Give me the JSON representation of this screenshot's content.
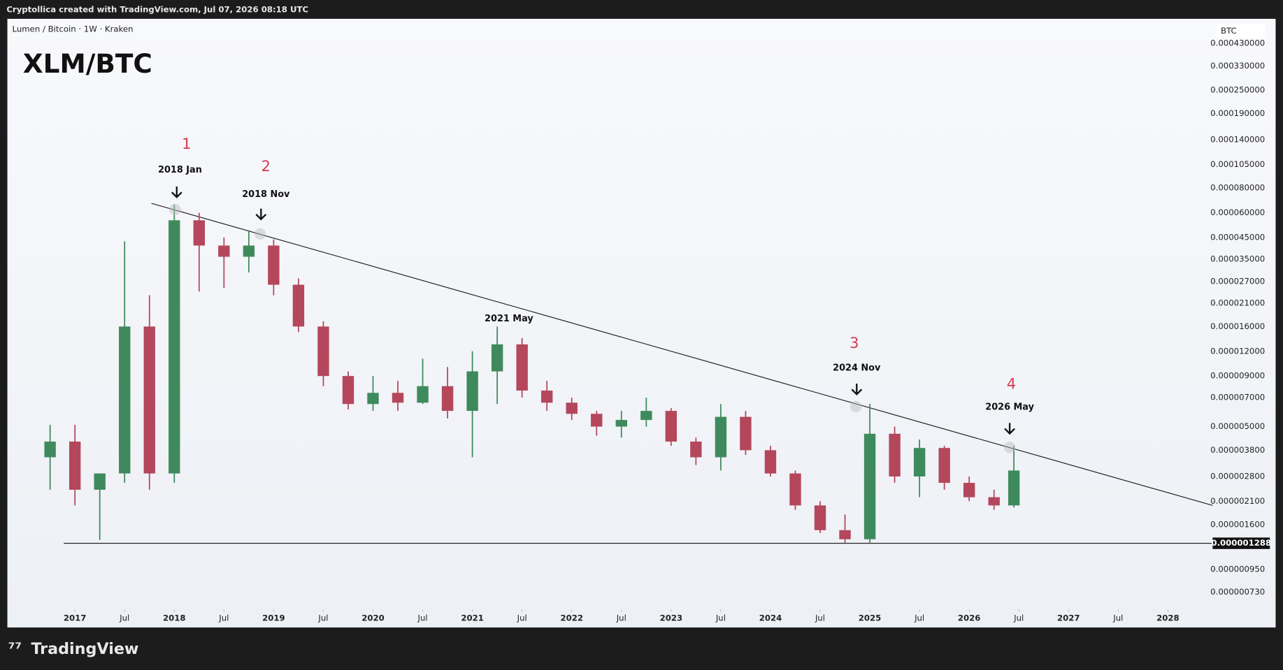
{
  "header": "Cryptollica created with TradingView.com, Jul 07, 2026 08:18 UTC",
  "brand": "TradingView",
  "chart_data": {
    "type": "candlestick",
    "title": "XLM/BTC",
    "subtitle": "Lumen / Bitcoin · 1W · Kraken",
    "y_unit": "BTC",
    "log_scale": true,
    "grid": false,
    "up_color": "#3f8a5c",
    "down_color": "#b4475c",
    "x": [
      2016.75,
      2017.0,
      2017.25,
      2017.5,
      2017.75,
      2018.0,
      2018.25,
      2018.5,
      2018.75,
      2019.0,
      2019.25,
      2019.5,
      2019.75,
      2020.0,
      2020.25,
      2020.5,
      2020.75,
      2021.0,
      2021.25,
      2021.5,
      2021.75,
      2022.0,
      2022.25,
      2022.5,
      2022.75,
      2023.0,
      2023.25,
      2023.5,
      2023.75,
      2024.0,
      2024.25,
      2024.5,
      2024.75,
      2025.0,
      2025.25,
      2025.5,
      2025.75,
      2026.0,
      2026.25,
      2026.45
    ],
    "open": [
      3.5e-06,
      4.2e-06,
      2.4e-06,
      2.9e-06,
      1.6e-05,
      2.9e-06,
      5.5e-05,
      4.1e-05,
      3.6e-05,
      4.1e-05,
      2.6e-05,
      1.6e-05,
      9e-06,
      6.5e-06,
      7.4e-06,
      6.6e-06,
      8e-06,
      6e-06,
      9.5e-06,
      1.3e-05,
      7.6e-06,
      6.6e-06,
      5.8e-06,
      5e-06,
      5.4e-06,
      6e-06,
      4.2e-06,
      3.5e-06,
      5.6e-06,
      3.8e-06,
      2.9e-06,
      2e-06,
      1.5e-06,
      1.35e-06,
      4.6e-06,
      2.8e-06,
      3.9e-06,
      2.6e-06,
      2.2e-06,
      2e-06
    ],
    "high": [
      5.1e-06,
      5.1e-06,
      2.9e-06,
      4.3e-05,
      2.3e-05,
      6.6e-05,
      6e-05,
      4.5e-05,
      4.9e-05,
      4.4e-05,
      2.8e-05,
      1.7e-05,
      9.5e-06,
      9e-06,
      8.5e-06,
      1.1e-05,
      1e-05,
      1.2e-05,
      1.6e-05,
      1.4e-05,
      8.5e-06,
      7e-06,
      6e-06,
      6e-06,
      7e-06,
      6.2e-06,
      4.4e-06,
      6.5e-06,
      6e-06,
      4e-06,
      3e-06,
      2.1e-06,
      1.8e-06,
      6.5e-06,
      5e-06,
      4.3e-06,
      4e-06,
      2.8e-06,
      2.4e-06,
      4e-06
    ],
    "low": [
      2.4e-06,
      2e-06,
      1.34e-06,
      2.6e-06,
      2.4e-06,
      2.6e-06,
      2.4e-05,
      2.5e-05,
      3e-05,
      2.3e-05,
      1.5e-05,
      8e-06,
      6.1e-06,
      6e-06,
      6e-06,
      6.5e-06,
      5.5e-06,
      3.5e-06,
      6.5e-06,
      7e-06,
      6e-06,
      5.4e-06,
      4.5e-06,
      4.4e-06,
      5e-06,
      4e-06,
      3.2e-06,
      3e-06,
      3.6e-06,
      2.8e-06,
      1.9e-06,
      1.45e-06,
      1.29e-06,
      1.29e-06,
      2.6e-06,
      2.2e-06,
      2.4e-06,
      2.1e-06,
      1.9e-06,
      1.95e-06
    ],
    "close": [
      4.2e-06,
      2.4e-06,
      2.9e-06,
      1.6e-05,
      2.9e-06,
      5.5e-05,
      4.1e-05,
      3.6e-05,
      4.1e-05,
      2.6e-05,
      1.6e-05,
      9e-06,
      6.5e-06,
      7.4e-06,
      6.6e-06,
      8e-06,
      6e-06,
      9.5e-06,
      1.3e-05,
      7.6e-06,
      6.6e-06,
      5.8e-06,
      5e-06,
      5.4e-06,
      6e-06,
      4.2e-06,
      3.5e-06,
      5.6e-06,
      3.8e-06,
      2.9e-06,
      2e-06,
      1.5e-06,
      1.35e-06,
      4.6e-06,
      2.8e-06,
      3.9e-06,
      2.6e-06,
      2.2e-06,
      2e-06,
      3e-06
    ],
    "xlim": [
      2016.32,
      2028.45
    ],
    "xticks": [
      2017,
      {
        "value": 2017.5,
        "label": "Jul"
      },
      2018,
      {
        "value": 2018.5,
        "label": "Jul"
      },
      2019,
      {
        "value": 2019.5,
        "label": "Jul"
      },
      2020,
      {
        "value": 2020.5,
        "label": "Jul"
      },
      2021,
      {
        "value": 2021.5,
        "label": "Jul"
      },
      2022,
      {
        "value": 2022.5,
        "label": "Jul"
      },
      2023,
      {
        "value": 2023.5,
        "label": "Jul"
      },
      2024,
      {
        "value": 2024.5,
        "label": "Jul"
      },
      2025,
      {
        "value": 2025.5,
        "label": "Jul"
      },
      2026,
      {
        "value": 2026.5,
        "label": "Jul"
      },
      2027,
      {
        "value": 2027.5,
        "label": "Jul"
      },
      2028
    ],
    "ylim": [
      6.14e-07,
      0.000572
    ],
    "yticks": [
      {
        "value": 0.00043,
        "label": "0.000430000"
      },
      {
        "value": 0.00033,
        "label": "0.000330000"
      },
      {
        "value": 0.00025,
        "label": "0.000250000"
      },
      {
        "value": 0.00019,
        "label": "0.000190000"
      },
      {
        "value": 0.00014,
        "label": "0.000140000"
      },
      {
        "value": 0.000105,
        "label": "0.000105000"
      },
      {
        "value": 8e-05,
        "label": "0.000080000"
      },
      {
        "value": 6e-05,
        "label": "0.000060000"
      },
      {
        "value": 4.5e-05,
        "label": "0.000045000"
      },
      {
        "value": 3.5e-05,
        "label": "0.000035000"
      },
      {
        "value": 2.7e-05,
        "label": "0.000027000"
      },
      {
        "value": 2.1e-05,
        "label": "0.000021000"
      },
      {
        "value": 1.6e-05,
        "label": "0.000016000"
      },
      {
        "value": 1.2e-05,
        "label": "0.000012000"
      },
      {
        "value": 9e-06,
        "label": "0.000009000"
      },
      {
        "value": 7e-06,
        "label": "0.000007000"
      },
      {
        "value": 5e-06,
        "label": "0.000005000"
      },
      {
        "value": 3.8e-06,
        "label": "0.000003800"
      },
      {
        "value": 2.8e-06,
        "label": "0.000002800"
      },
      {
        "value": 2.1e-06,
        "label": "0.000002100"
      },
      {
        "value": 1.6e-06,
        "label": "0.000001600"
      },
      {
        "value": 9.5e-07,
        "label": "0.000000950"
      },
      {
        "value": 7.3e-07,
        "label": "0.000000730"
      }
    ],
    "price_line": {
      "value": 1.288e-06,
      "label": "0.000001288"
    },
    "trendline": {
      "x": [
        2017.77,
        2028.45
      ],
      "y": [
        6.7e-05,
        2e-06
      ]
    },
    "annotations": [
      "1",
      "2018 Jan",
      "2",
      "2018 Nov",
      "2021 May",
      "3",
      "2024 Nov",
      "4",
      "2026 May"
    ]
  }
}
